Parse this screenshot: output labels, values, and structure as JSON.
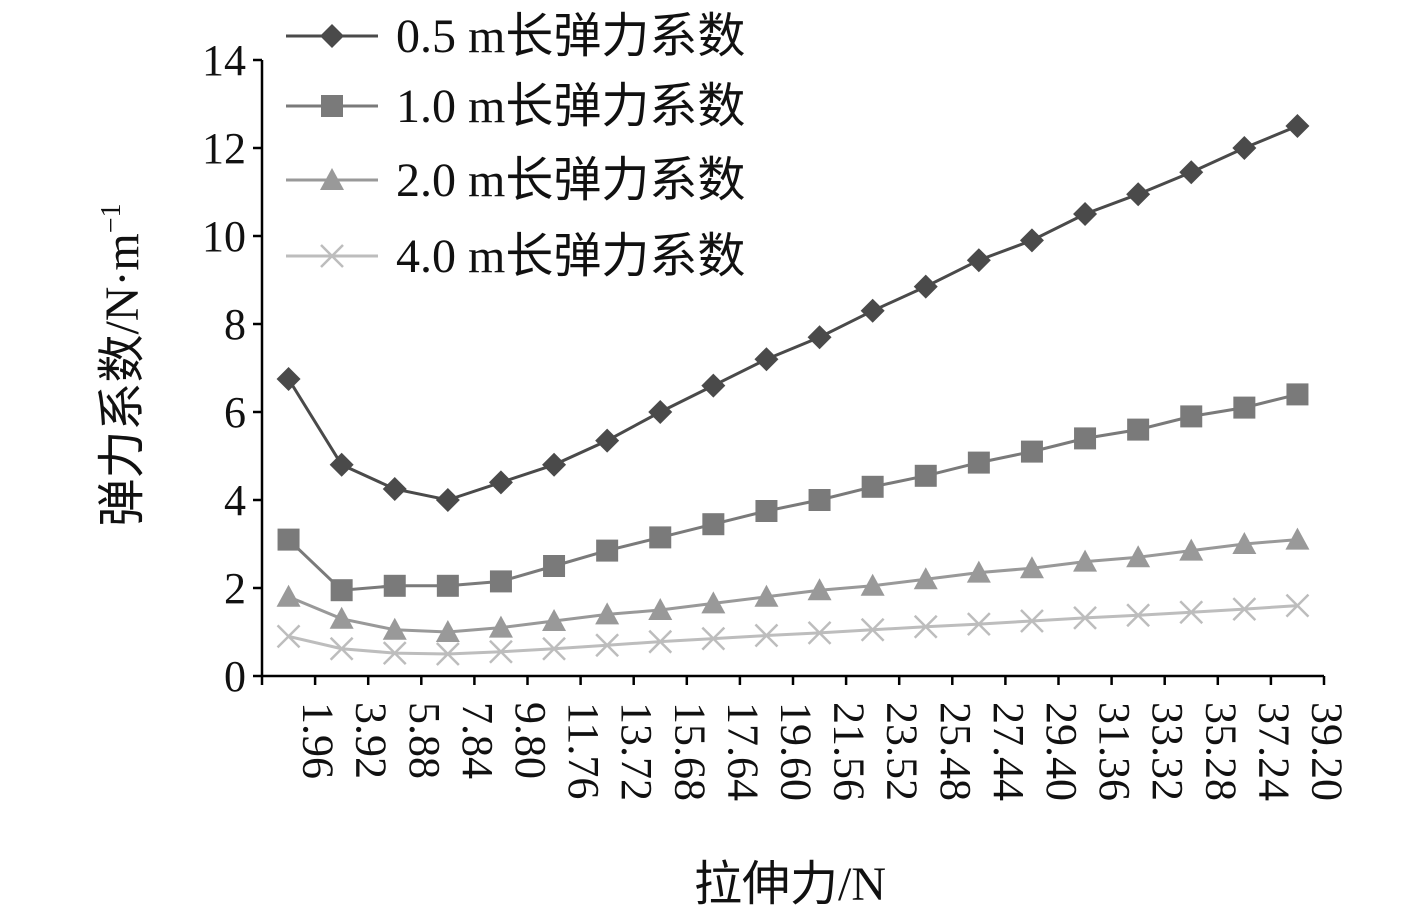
{
  "chart_data": {
    "type": "line",
    "xlabel": "拉伸力/N",
    "ylabel_main": "弹力系数/N·m",
    "ylabel_sup": "−1",
    "ylim": [
      0,
      14
    ],
    "yticks": [
      "0",
      "2",
      "4",
      "6",
      "8",
      "10",
      "12",
      "14"
    ],
    "grid": false,
    "legend_position": "top-left",
    "categories": [
      "1.96",
      "3.92",
      "5.88",
      "7.84",
      "9.80",
      "11.76",
      "13.72",
      "15.68",
      "17.64",
      "19.60",
      "21.56",
      "23.52",
      "25.48",
      "27.44",
      "29.40",
      "31.36",
      "33.32",
      "35.28",
      "37.24",
      "39.20"
    ],
    "series": [
      {
        "name": "0.5 m长弹力系数",
        "marker": "diamond",
        "color": "#4a4a4a",
        "values": [
          6.75,
          4.8,
          4.25,
          4.0,
          4.4,
          4.8,
          5.35,
          6.0,
          6.6,
          7.2,
          7.7,
          8.3,
          8.85,
          9.45,
          9.9,
          10.5,
          10.95,
          11.45,
          12.0,
          12.5
        ]
      },
      {
        "name": "1.0 m长弹力系数",
        "marker": "square",
        "color": "#7a7a7a",
        "values": [
          3.1,
          1.95,
          2.05,
          2.05,
          2.15,
          2.5,
          2.85,
          3.15,
          3.45,
          3.75,
          4.0,
          4.3,
          4.55,
          4.85,
          5.1,
          5.4,
          5.6,
          5.9,
          6.1,
          6.4
        ]
      },
      {
        "name": "2.0 m长弹力系数",
        "marker": "triangle",
        "color": "#999999",
        "values": [
          1.8,
          1.3,
          1.05,
          1.0,
          1.1,
          1.25,
          1.4,
          1.5,
          1.65,
          1.8,
          1.95,
          2.05,
          2.2,
          2.35,
          2.45,
          2.6,
          2.7,
          2.85,
          3.0,
          3.1
        ]
      },
      {
        "name": "4.0 m长弹力系数",
        "marker": "x",
        "color": "#bdbdbd",
        "values": [
          0.9,
          0.62,
          0.52,
          0.5,
          0.55,
          0.62,
          0.7,
          0.78,
          0.85,
          0.92,
          0.98,
          1.05,
          1.12,
          1.18,
          1.25,
          1.32,
          1.38,
          1.45,
          1.52,
          1.6
        ]
      }
    ]
  }
}
